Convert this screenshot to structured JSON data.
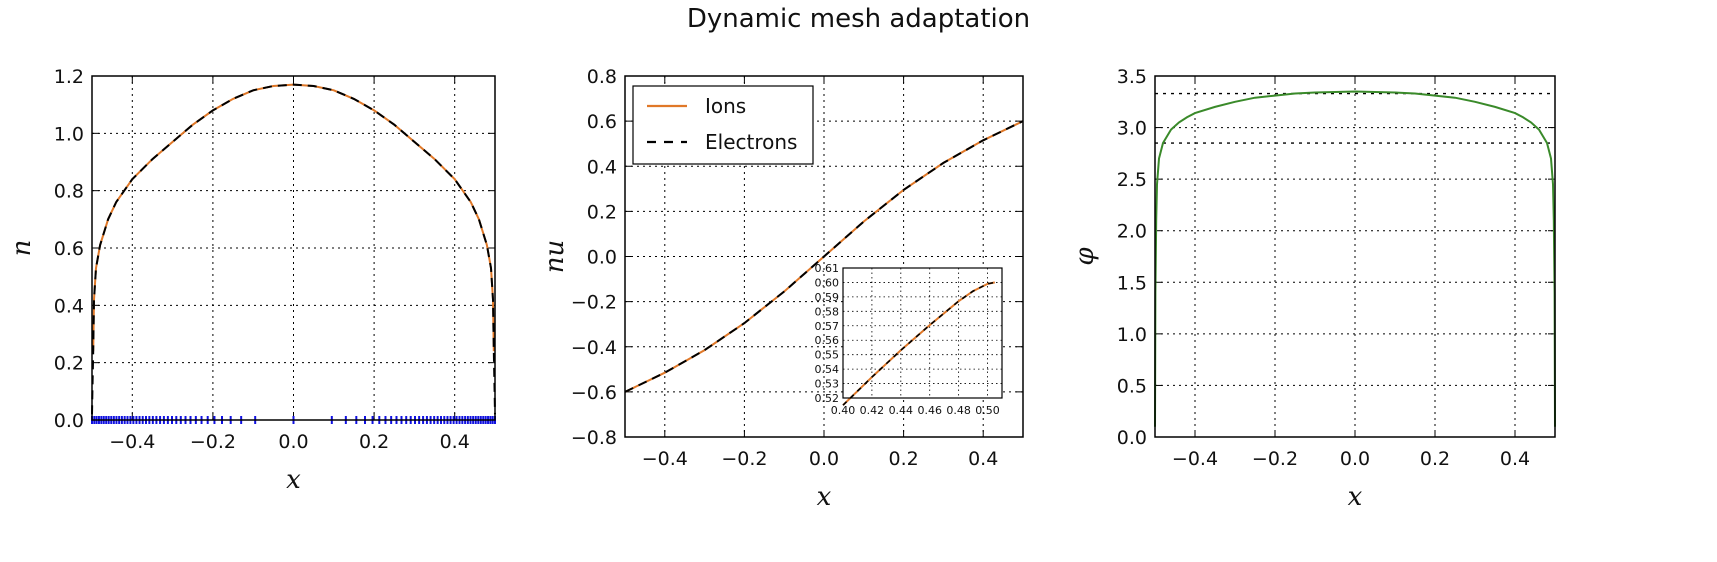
{
  "figure": {
    "title": "Dynamic mesh adaptation"
  },
  "colors": {
    "ions": "#e07828",
    "electrons": "#000000",
    "mesh": "#1010e0",
    "phi": "#3a8a2a"
  },
  "chart_data": [
    {
      "type": "line",
      "xlabel": "x",
      "ylabel": "n",
      "xlim": [
        -0.5,
        0.5
      ],
      "ylim": [
        0.0,
        1.2
      ],
      "x_ticks": [
        "-0.4",
        "-0.2",
        "0.0",
        "0.2",
        "0.4"
      ],
      "y_ticks": [
        "0.0",
        "0.2",
        "0.4",
        "0.6",
        "0.8",
        "1.0",
        "1.2"
      ],
      "grid": true,
      "series": [
        {
          "style": "orange solid",
          "x": [
            -0.497,
            -0.495,
            -0.49,
            -0.48,
            -0.46,
            -0.44,
            -0.42,
            -0.4,
            -0.35,
            -0.3,
            -0.25,
            -0.2,
            -0.15,
            -0.1,
            -0.05,
            0.0,
            0.05,
            0.1,
            0.15,
            0.2,
            0.25,
            0.3,
            0.35,
            0.4,
            0.42,
            0.44,
            0.46,
            0.48,
            0.49,
            0.495,
            0.497
          ],
          "y": [
            0.24,
            0.42,
            0.53,
            0.61,
            0.7,
            0.76,
            0.8,
            0.84,
            0.91,
            0.97,
            1.03,
            1.08,
            1.12,
            1.15,
            1.165,
            1.17,
            1.165,
            1.15,
            1.12,
            1.08,
            1.03,
            0.97,
            0.91,
            0.84,
            0.8,
            0.76,
            0.7,
            0.61,
            0.53,
            0.42,
            0.24
          ]
        },
        {
          "style": "black dashed",
          "x": [
            -0.5,
            -0.499,
            -0.497,
            -0.495,
            -0.49,
            -0.48,
            -0.46,
            -0.44,
            -0.42,
            -0.4,
            -0.35,
            -0.3,
            -0.25,
            -0.2,
            -0.15,
            -0.1,
            -0.05,
            0.0,
            0.05,
            0.1,
            0.15,
            0.2,
            0.25,
            0.3,
            0.35,
            0.4,
            0.42,
            0.44,
            0.46,
            0.48,
            0.49,
            0.495,
            0.497,
            0.499,
            0.5
          ],
          "y": [
            0.02,
            0.1,
            0.24,
            0.42,
            0.53,
            0.61,
            0.7,
            0.76,
            0.8,
            0.84,
            0.91,
            0.97,
            1.03,
            1.08,
            1.12,
            1.15,
            1.165,
            1.17,
            1.165,
            1.15,
            1.12,
            1.08,
            1.03,
            0.97,
            0.91,
            0.84,
            0.8,
            0.76,
            0.7,
            0.61,
            0.53,
            0.42,
            0.24,
            0.1,
            0.02
          ]
        }
      ],
      "mesh_points_y": 0.0
    },
    {
      "type": "line",
      "xlabel": "x",
      "ylabel": "nu",
      "xlim": [
        -0.5,
        0.5
      ],
      "ylim": [
        -0.8,
        0.8
      ],
      "x_ticks": [
        "-0.4",
        "-0.2",
        "0.0",
        "0.2",
        "0.4"
      ],
      "y_ticks": [
        "-0.8",
        "-0.6",
        "-0.4",
        "-0.2",
        "0.0",
        "0.2",
        "0.4",
        "0.6",
        "0.8"
      ],
      "grid": true,
      "legend": {
        "position": "top-left",
        "entries": [
          "Ions",
          "Electrons"
        ]
      },
      "series": [
        {
          "name": "Ions",
          "style": "orange solid",
          "x": [
            -0.5,
            -0.4,
            -0.3,
            -0.2,
            -0.1,
            0.0,
            0.1,
            0.2,
            0.3,
            0.4,
            0.5
          ],
          "y": [
            -0.6,
            -0.515,
            -0.415,
            -0.295,
            -0.155,
            0.0,
            0.155,
            0.295,
            0.415,
            0.515,
            0.6
          ]
        },
        {
          "name": "Electrons",
          "style": "black dashed",
          "x": [
            -0.5,
            -0.4,
            -0.3,
            -0.2,
            -0.1,
            0.0,
            0.1,
            0.2,
            0.3,
            0.4,
            0.5
          ],
          "y": [
            -0.6,
            -0.515,
            -0.415,
            -0.295,
            -0.155,
            0.0,
            0.155,
            0.295,
            0.415,
            0.515,
            0.6
          ]
        }
      ],
      "inset": {
        "xlim": [
          0.4,
          0.51
        ],
        "ylim": [
          0.52,
          0.61
        ],
        "x_ticks": [
          "0.40",
          "0.42",
          "0.44",
          "0.46",
          "0.48",
          "0.50"
        ],
        "y_ticks": [
          "0.52",
          "0.53",
          "0.54",
          "0.55",
          "0.56",
          "0.57",
          "0.58",
          "0.59",
          "0.60",
          "0.61"
        ],
        "x": [
          0.4,
          0.42,
          0.44,
          0.46,
          0.48,
          0.49,
          0.5,
          0.505
        ],
        "y": [
          0.515,
          0.5345,
          0.553,
          0.5705,
          0.587,
          0.594,
          0.599,
          0.6
        ]
      }
    },
    {
      "type": "line",
      "xlabel": "x",
      "ylabel": "φ",
      "xlim": [
        -0.5,
        0.5
      ],
      "ylim": [
        0.0,
        3.5
      ],
      "x_ticks": [
        "-0.4",
        "-0.2",
        "0.0",
        "0.2",
        "0.4"
      ],
      "y_ticks": [
        "0.0",
        "0.5",
        "1.0",
        "1.5",
        "2.0",
        "2.5",
        "3.0",
        "3.5"
      ],
      "grid": true,
      "hlines": [
        3.33,
        2.85
      ],
      "series": [
        {
          "style": "green solid",
          "x": [
            -0.5,
            -0.499,
            -0.497,
            -0.495,
            -0.49,
            -0.48,
            -0.46,
            -0.44,
            -0.42,
            -0.4,
            -0.35,
            -0.3,
            -0.25,
            -0.2,
            -0.15,
            -0.1,
            -0.05,
            0.0,
            0.05,
            0.1,
            0.15,
            0.2,
            0.25,
            0.3,
            0.35,
            0.4,
            0.42,
            0.44,
            0.46,
            0.48,
            0.49,
            0.495,
            0.497,
            0.499,
            0.5
          ],
          "y": [
            0.1,
            1.4,
            2.1,
            2.45,
            2.7,
            2.85,
            2.98,
            3.05,
            3.1,
            3.14,
            3.2,
            3.25,
            3.29,
            3.31,
            3.33,
            3.34,
            3.345,
            3.35,
            3.345,
            3.34,
            3.33,
            3.31,
            3.29,
            3.25,
            3.2,
            3.14,
            3.1,
            3.05,
            2.98,
            2.85,
            2.7,
            2.45,
            2.1,
            1.4,
            0.1
          ]
        }
      ]
    }
  ]
}
